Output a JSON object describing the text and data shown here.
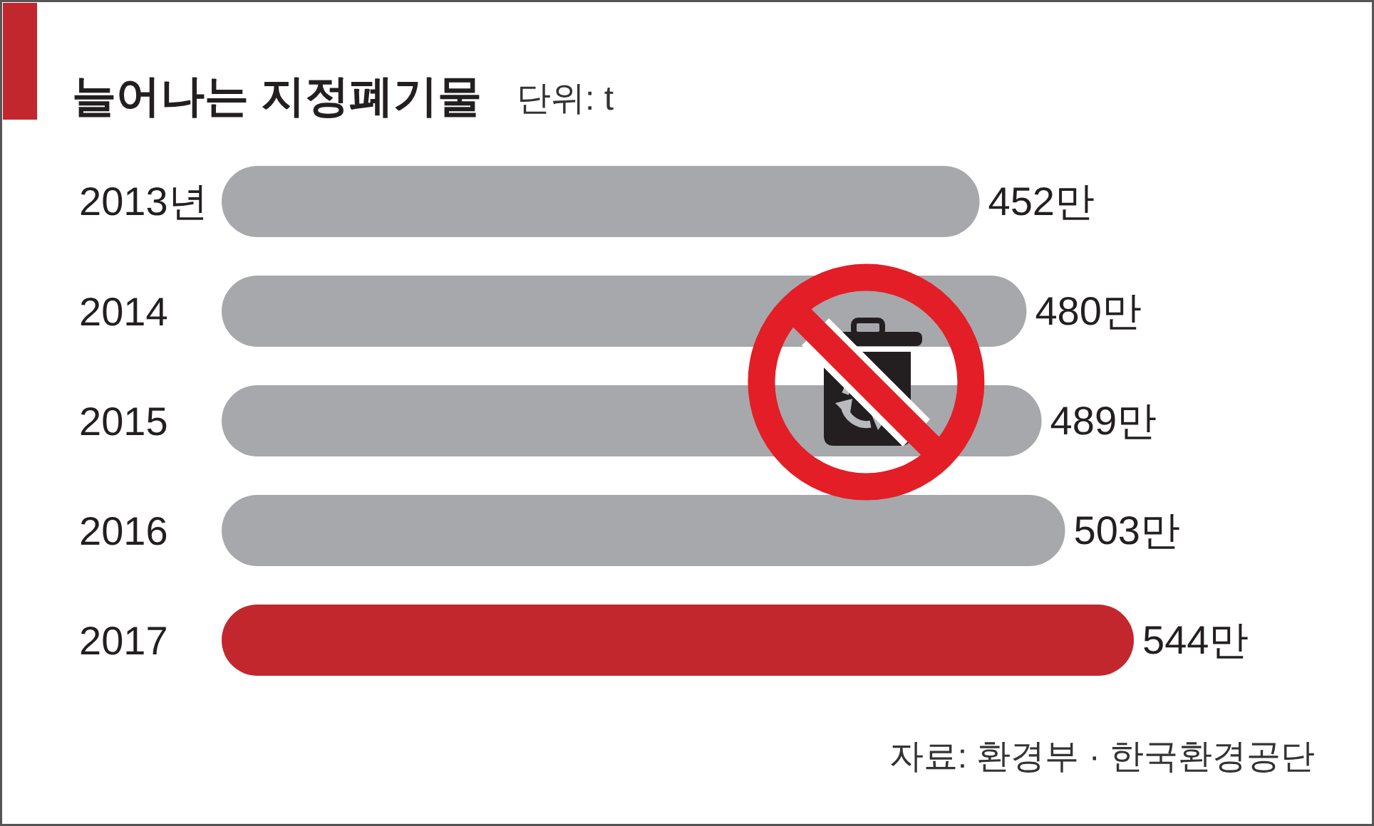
{
  "chart_data": {
    "type": "bar",
    "orientation": "horizontal",
    "title": "늘어나는 지정폐기물",
    "subtitle": "단위: t",
    "categories": [
      "2013년",
      "2014",
      "2015",
      "2016",
      "2017"
    ],
    "values": [
      452,
      480,
      489,
      503,
      544
    ],
    "colors": [
      "#a7a8ab",
      "#a7a8ab",
      "#a7a8ab",
      "#a7a8ab",
      "#c1272d"
    ],
    "value_labels": [
      "452만",
      "480만",
      "489만",
      "503만",
      "544만"
    ],
    "annotations": [
      "자료: 환경부 · 한국환경공단"
    ]
  }
}
